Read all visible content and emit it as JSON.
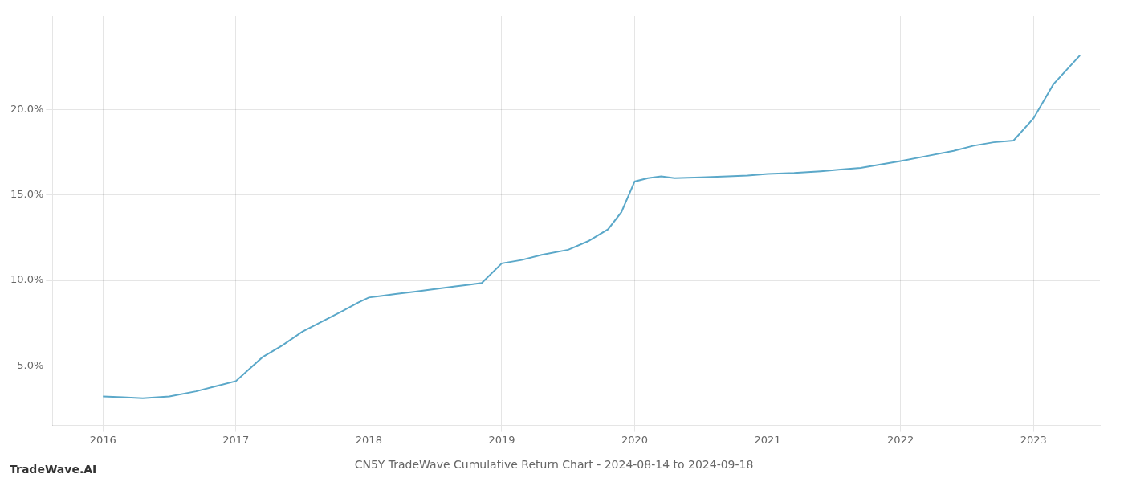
{
  "chart_data": {
    "type": "line",
    "title": "CN5Y TradeWave Cumulative Return Chart - 2024-08-14 to 2024-09-18",
    "annotations": [
      "TradeWave.AI"
    ],
    "x": [
      2016.0,
      2016.15,
      2016.3,
      2016.5,
      2016.7,
      2016.85,
      2017.0,
      2017.1,
      2017.2,
      2017.35,
      2017.5,
      2017.65,
      2017.8,
      2017.92,
      2018.0,
      2018.1,
      2018.2,
      2018.35,
      2018.5,
      2018.65,
      2018.75,
      2018.85,
      2019.0,
      2019.15,
      2019.3,
      2019.5,
      2019.65,
      2019.8,
      2019.9,
      2020.0,
      2020.1,
      2020.2,
      2020.3,
      2020.5,
      2020.7,
      2020.85,
      2021.0,
      2021.2,
      2021.4,
      2021.55,
      2021.7,
      2021.85,
      2022.0,
      2022.2,
      2022.4,
      2022.55,
      2022.7,
      2022.85,
      2023.0,
      2023.15,
      2023.35
    ],
    "values": [
      3.2,
      3.15,
      3.1,
      3.2,
      3.5,
      3.8,
      4.1,
      4.8,
      5.5,
      6.2,
      7.0,
      7.6,
      8.2,
      8.7,
      9.0,
      9.1,
      9.2,
      9.35,
      9.5,
      9.65,
      9.75,
      9.85,
      11.0,
      11.2,
      11.5,
      11.8,
      12.3,
      13.0,
      14.0,
      15.8,
      16.0,
      16.1,
      16.0,
      16.05,
      16.1,
      16.15,
      16.25,
      16.3,
      16.4,
      16.5,
      16.6,
      16.8,
      17.0,
      17.3,
      17.6,
      17.9,
      18.1,
      18.2,
      19.5,
      21.5,
      23.2
    ],
    "color": "#5ba8c9",
    "xlim": [
      2015.62,
      2023.5
    ],
    "ylim": [
      1.5,
      25.5
    ],
    "xticks": [
      2016,
      2017,
      2018,
      2019,
      2020,
      2021,
      2022,
      2023
    ],
    "yticks": [
      {
        "value": 5.0,
        "label": "5.0%"
      },
      {
        "value": 10.0,
        "label": "10.0%"
      },
      {
        "value": 15.0,
        "label": "15.0%"
      },
      {
        "value": 20.0,
        "label": "20.0%"
      }
    ],
    "grid": true
  }
}
